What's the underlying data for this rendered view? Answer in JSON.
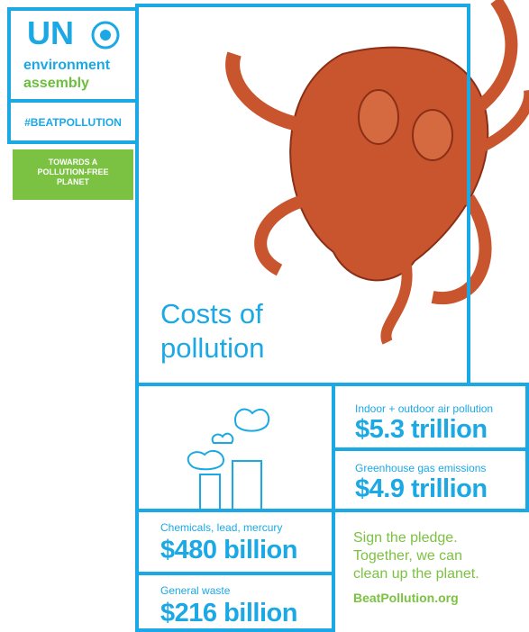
{
  "logo": {
    "abbr": "UN",
    "line1": "environment",
    "line2": "assembly"
  },
  "hashtag": "#BEATPOLLUTION",
  "button": [
    "TOWARDS A",
    "POLLUTION-FREE",
    "PLANET"
  ],
  "title_lines": [
    "Costs of",
    "pollution"
  ],
  "costs": [
    {
      "label": "Indoor + outdoor air pollution",
      "amount": "$5.3 trillion"
    },
    {
      "label": "Greenhouse gas emissions",
      "amount": "$4.9 trillion"
    },
    {
      "label": "Chemicals, lead, mercury",
      "amount": "$480 billion"
    },
    {
      "label": "General waste",
      "amount": "$216 billion"
    }
  ],
  "pledge_lines": [
    "Sign the pledge.",
    "Together, we can",
    "clean up the planet."
  ],
  "link": "BeatPollution.org"
}
